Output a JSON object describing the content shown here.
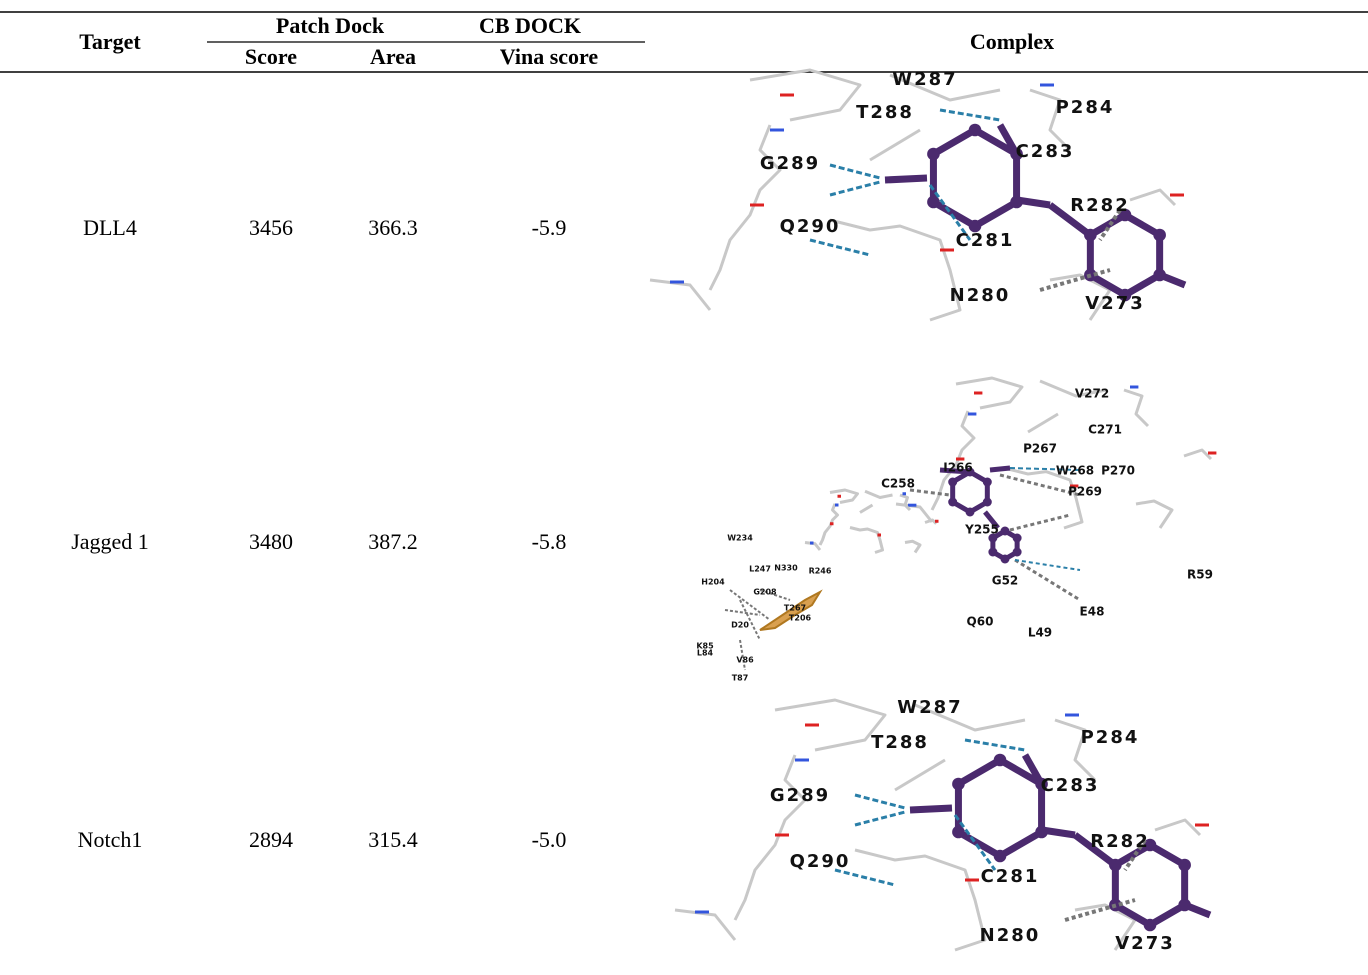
{
  "table": {
    "header": {
      "target": "Target",
      "patch_dock": "Patch Dock",
      "score": "Score",
      "area": "Area",
      "cb_dock": "CB DOCK",
      "vina": "Vina score",
      "complex": "Complex"
    },
    "rows": [
      {
        "target": "DLL4",
        "score": "3456",
        "area": "366.3",
        "vina": "-5.9",
        "residues": [
          "W287",
          "T288",
          "P284",
          "G289",
          "C283",
          "R282",
          "Q290",
          "C281",
          "N280",
          "V273"
        ]
      },
      {
        "target": "Jagged 1",
        "score": "3480",
        "area": "387.2",
        "vina": "-5.8",
        "residues": [
          "V272",
          "C271",
          "P267",
          "I266",
          "W268",
          "P270",
          "C258",
          "P269",
          "Y255",
          "G52",
          "R59",
          "E48",
          "Q60",
          "L49",
          "W234",
          "L247",
          "N330",
          "R246",
          "H204",
          "G208",
          "T267",
          "T206",
          "D20",
          "K85",
          "L84",
          "V86",
          "T87"
        ]
      },
      {
        "target": "Notch1",
        "score": "2894",
        "area": "315.4",
        "vina": "-5.0",
        "residues": [
          "W287",
          "T288",
          "P284",
          "G289",
          "C283",
          "R282",
          "Q290",
          "C281",
          "N280",
          "V273"
        ]
      }
    ]
  }
}
